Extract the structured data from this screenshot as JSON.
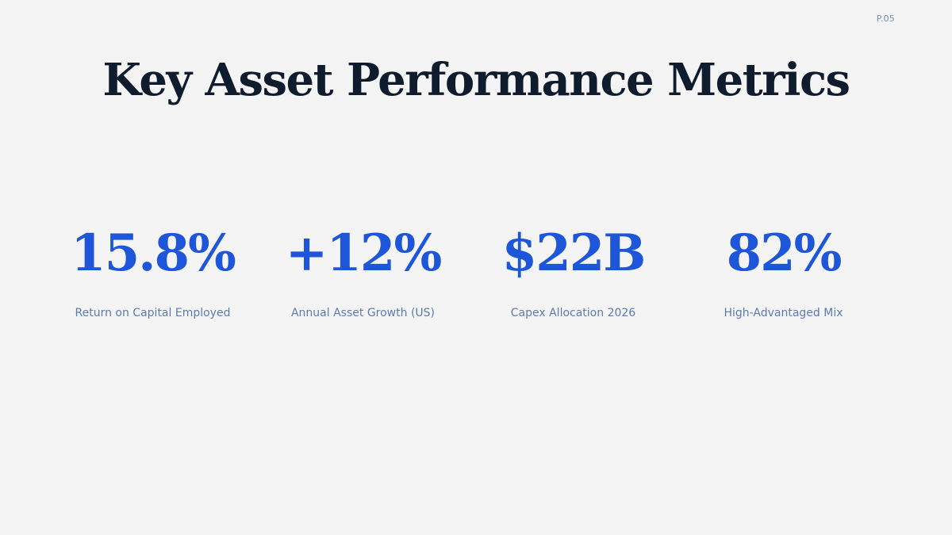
{
  "page": {
    "number": "P.05",
    "title": "Key Asset Performance Metrics"
  },
  "metrics": [
    {
      "value": "15.8%",
      "label": "Return on Capital Employed"
    },
    {
      "value": "+12%",
      "label": "Annual Asset Growth (US)"
    },
    {
      "value": "$22B",
      "label": "Capex Allocation 2026"
    },
    {
      "value": "82%",
      "label": "High-Advantaged Mix"
    }
  ],
  "colors": {
    "background": "#f4f4f5",
    "title": "#0f1c2e",
    "accent": "#1d56d8",
    "label": "#5b7bb0",
    "page_number": "#7d8fb0"
  }
}
